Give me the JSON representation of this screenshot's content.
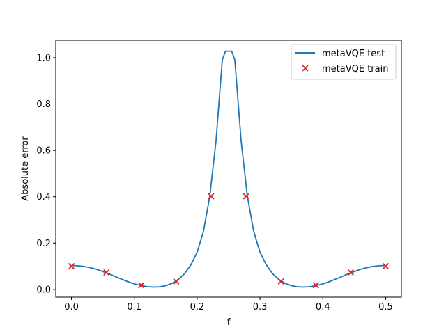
{
  "chart_data": {
    "type": "line",
    "xlabel": "f",
    "ylabel": "Absolute error",
    "xlim": [
      -0.025,
      0.525
    ],
    "ylim": [
      -0.0335,
      1.075
    ],
    "xticks": [
      "0.0",
      "0.1",
      "0.2",
      "0.3",
      "0.4",
      "0.5"
    ],
    "yticks": [
      "0.0",
      "0.2",
      "0.4",
      "0.6",
      "0.8",
      "1.0"
    ],
    "grid": false,
    "legend_position": "top-right",
    "series": [
      {
        "name": "metaVQE test",
        "style": "line",
        "color": "#1f77b4",
        "x": [
          0.0,
          0.01,
          0.02,
          0.03,
          0.04,
          0.05,
          0.06,
          0.07,
          0.08,
          0.09,
          0.1,
          0.11,
          0.12,
          0.13,
          0.14,
          0.15,
          0.16,
          0.17,
          0.18,
          0.19,
          0.2,
          0.21,
          0.22,
          0.23,
          0.24,
          0.245,
          0.255,
          0.26,
          0.27,
          0.28,
          0.29,
          0.3,
          0.31,
          0.32,
          0.33,
          0.34,
          0.35,
          0.36,
          0.37,
          0.38,
          0.39,
          0.4,
          0.41,
          0.42,
          0.43,
          0.44,
          0.45,
          0.46,
          0.47,
          0.48,
          0.49,
          0.5
        ],
        "y": [
          0.103,
          0.102,
          0.099,
          0.094,
          0.087,
          0.077,
          0.067,
          0.055,
          0.044,
          0.033,
          0.024,
          0.017,
          0.012,
          0.01,
          0.011,
          0.016,
          0.026,
          0.043,
          0.068,
          0.106,
          0.16,
          0.25,
          0.4,
          0.64,
          0.99,
          1.028,
          1.028,
          0.99,
          0.64,
          0.4,
          0.25,
          0.16,
          0.106,
          0.068,
          0.043,
          0.026,
          0.016,
          0.011,
          0.01,
          0.012,
          0.017,
          0.024,
          0.033,
          0.044,
          0.055,
          0.067,
          0.077,
          0.087,
          0.094,
          0.099,
          0.102,
          0.103
        ]
      },
      {
        "name": "metaVQE train",
        "style": "scatter",
        "marker": "x",
        "color": "#d62728",
        "x": [
          0.0,
          0.0556,
          0.1111,
          0.1667,
          0.2222,
          0.2778,
          0.3333,
          0.3889,
          0.4444,
          0.5
        ],
        "y": [
          0.1,
          0.073,
          0.018,
          0.034,
          0.402,
          0.402,
          0.034,
          0.018,
          0.073,
          0.1
        ]
      }
    ]
  }
}
